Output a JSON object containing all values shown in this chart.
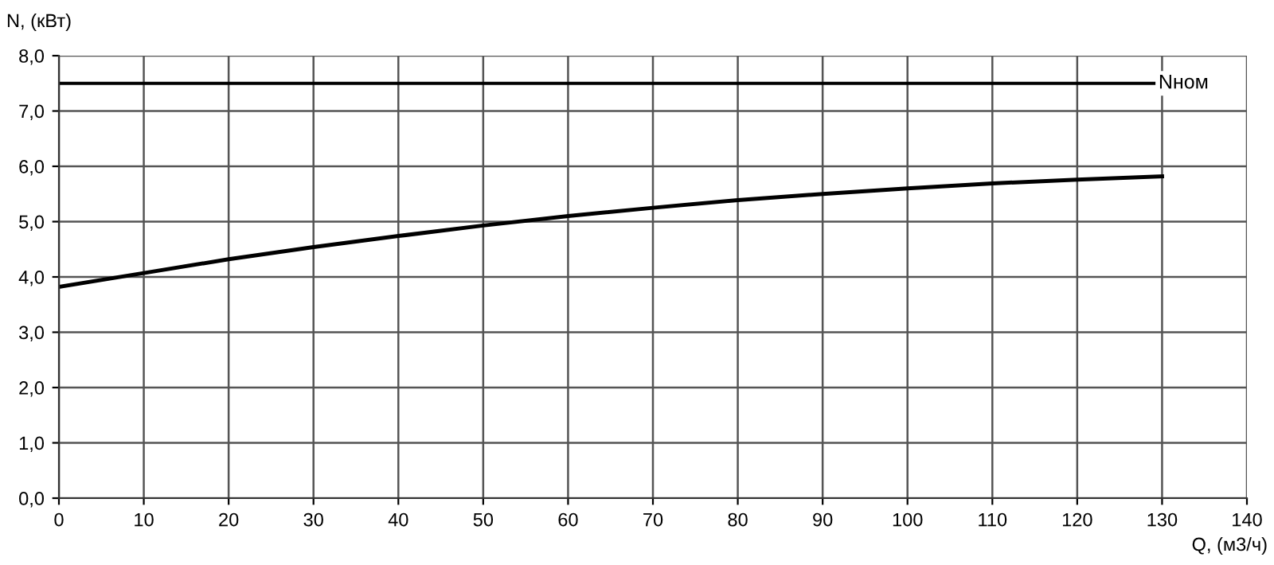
{
  "chart_data": {
    "type": "line",
    "xlabel": "Q, (м3/ч)",
    "ylabel": "N, (кВт)",
    "x": [
      0,
      10,
      20,
      30,
      40,
      50,
      60,
      70,
      80,
      90,
      100,
      110,
      120,
      130
    ],
    "series": [
      {
        "color": "#000000",
        "values": [
          3.82,
          4.07,
          4.32,
          4.54,
          4.74,
          4.93,
          5.1,
          5.25,
          5.39,
          5.5,
          5.6,
          5.69,
          5.76,
          5.82
        ]
      }
    ],
    "xlim": [
      0,
      140
    ],
    "xticks": [
      0,
      10,
      20,
      30,
      40,
      50,
      60,
      70,
      80,
      90,
      100,
      110,
      120,
      130,
      140
    ],
    "ylim": [
      0,
      8
    ],
    "yticks": [
      {
        "value": 0,
        "label": "0,0"
      },
      {
        "value": 1,
        "label": "1,0"
      },
      {
        "value": 2,
        "label": "2,0"
      },
      {
        "value": 3,
        "label": "3,0"
      },
      {
        "value": 4,
        "label": "4,0"
      },
      {
        "value": 5,
        "label": "5,0"
      },
      {
        "value": 6,
        "label": "6,0"
      },
      {
        "value": 7,
        "label": "7,0"
      },
      {
        "value": 8,
        "label": "8,0"
      }
    ],
    "ref_lines": [
      {
        "axis": "y",
        "value": 7.5,
        "label": "Nном",
        "color": "#000000"
      }
    ],
    "grid": true,
    "legend": false,
    "marker": "none",
    "line_style": "solid"
  }
}
